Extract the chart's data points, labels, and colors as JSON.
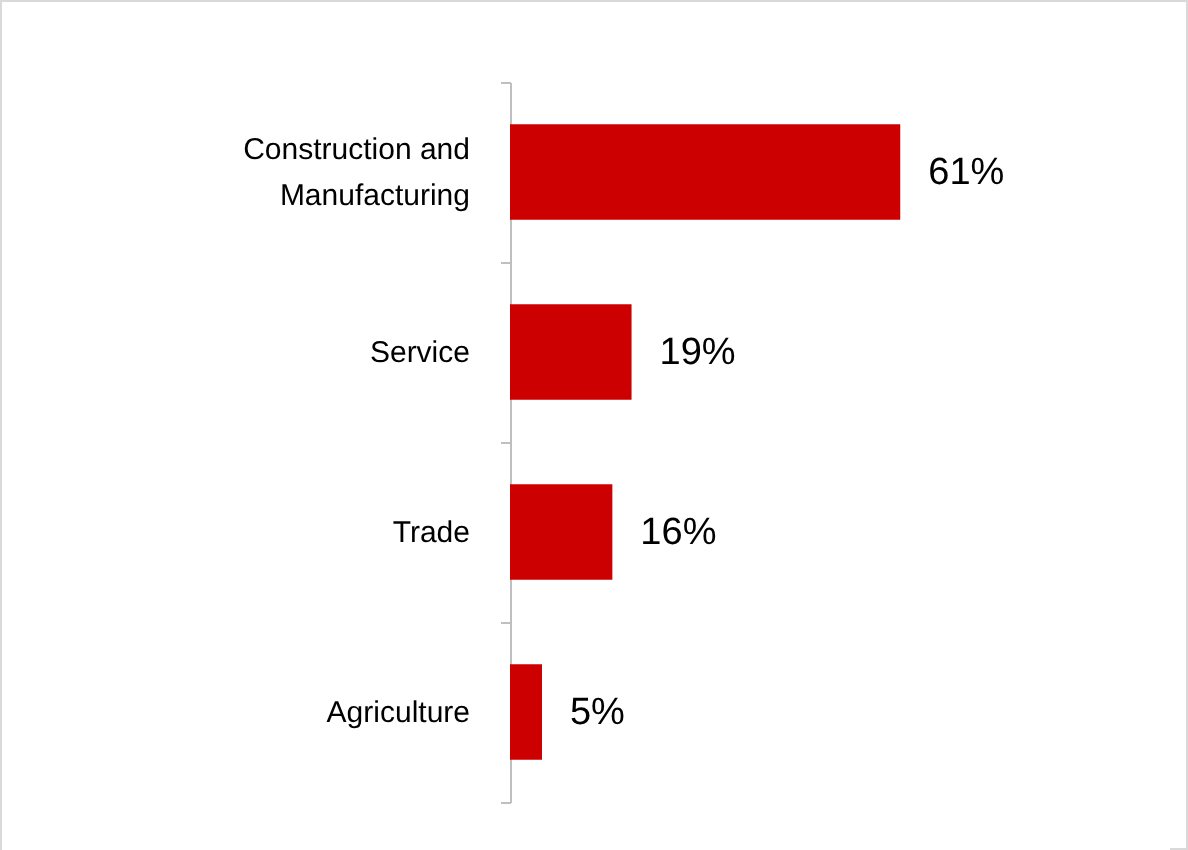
{
  "chart_data": {
    "type": "bar",
    "orientation": "horizontal",
    "categories": [
      "Construction and Manufacturing",
      "Service",
      "Trade",
      "Agriculture"
    ],
    "values": [
      61,
      19,
      16,
      5
    ],
    "value_labels": [
      "61%",
      "19%",
      "16%",
      "5%"
    ],
    "color": "#cc0000"
  }
}
